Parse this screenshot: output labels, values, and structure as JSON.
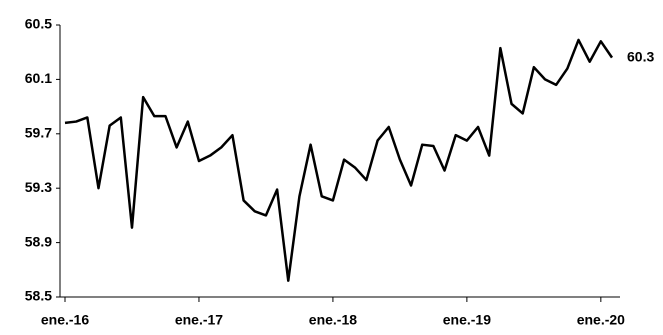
{
  "chart_data": {
    "type": "line",
    "categories": [
      "ene.-16",
      null,
      null,
      null,
      null,
      null,
      null,
      null,
      null,
      null,
      null,
      null,
      "ene.-17",
      null,
      null,
      null,
      null,
      null,
      null,
      null,
      null,
      null,
      null,
      null,
      "ene.-18",
      null,
      null,
      null,
      null,
      null,
      null,
      null,
      null,
      null,
      null,
      null,
      "ene.-19",
      null,
      null,
      null,
      null,
      null,
      null,
      null,
      null,
      null,
      null,
      null,
      "ene.-20",
      null
    ],
    "series": [
      {
        "color": "#000000",
        "values": [
          59.78,
          59.79,
          59.82,
          59.3,
          59.76,
          59.82,
          59.01,
          59.97,
          59.83,
          59.83,
          59.6,
          59.79,
          59.5,
          59.54,
          59.6,
          59.69,
          59.21,
          59.13,
          59.1,
          59.29,
          58.62,
          59.24,
          59.62,
          59.24,
          59.21,
          59.51,
          59.45,
          59.36,
          59.65,
          59.75,
          59.51,
          59.32,
          59.62,
          59.61,
          59.43,
          59.69,
          59.65,
          59.75,
          59.54,
          60.33,
          59.92,
          59.85,
          60.19,
          60.1,
          60.06,
          60.18,
          60.39,
          60.23,
          60.38,
          60.26
        ],
        "value_labels": [
          null,
          null,
          null,
          null,
          null,
          null,
          null,
          null,
          null,
          null,
          null,
          null,
          null,
          null,
          null,
          null,
          null,
          null,
          null,
          null,
          null,
          null,
          null,
          null,
          null,
          null,
          null,
          null,
          null,
          null,
          null,
          null,
          null,
          null,
          null,
          null,
          null,
          null,
          null,
          null,
          null,
          null,
          null,
          null,
          null,
          null,
          null,
          null,
          null,
          "60.3"
        ]
      }
    ],
    "ylim": [
      58.5,
      60.5
    ],
    "yticks": [
      58.5,
      58.9,
      59.3,
      59.7,
      60.1,
      60.5
    ],
    "grid": false
  }
}
